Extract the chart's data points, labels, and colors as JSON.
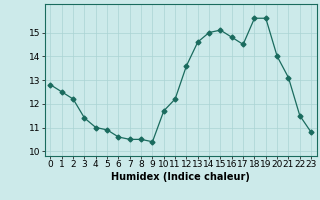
{
  "x": [
    0,
    1,
    2,
    3,
    4,
    5,
    6,
    7,
    8,
    9,
    10,
    11,
    12,
    13,
    14,
    15,
    16,
    17,
    18,
    19,
    20,
    21,
    22,
    23
  ],
  "y": [
    12.8,
    12.5,
    12.2,
    11.4,
    11.0,
    10.9,
    10.6,
    10.5,
    10.5,
    10.4,
    11.7,
    12.2,
    13.6,
    14.6,
    15.0,
    15.1,
    14.8,
    14.5,
    15.6,
    15.6,
    14.0,
    13.1,
    11.5,
    10.8
  ],
  "xlabel": "Humidex (Indice chaleur)",
  "xlim": [
    -0.5,
    23.5
  ],
  "ylim": [
    9.8,
    16.2
  ],
  "yticks": [
    10,
    11,
    12,
    13,
    14,
    15
  ],
  "xticks": [
    0,
    1,
    2,
    3,
    4,
    5,
    6,
    7,
    8,
    9,
    10,
    11,
    12,
    13,
    14,
    15,
    16,
    17,
    18,
    19,
    20,
    21,
    22,
    23
  ],
  "line_color": "#1a6b5e",
  "marker_color": "#1a6b5e",
  "bg_color": "#cceaea",
  "grid_color": "#aad4d4",
  "label_fontsize": 7,
  "tick_fontsize": 6.5
}
